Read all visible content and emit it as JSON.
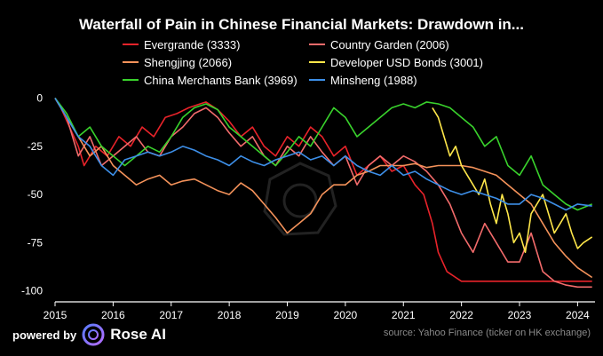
{
  "chart_data": {
    "type": "line",
    "title": "Waterfall of Pain in Chinese Financial Markets: Drawdown in...",
    "xlabel": "",
    "ylabel": "",
    "x_ticks": [
      "2015",
      "2016",
      "2017",
      "2018",
      "2019",
      "2020",
      "2021",
      "2022",
      "2023",
      "2024"
    ],
    "y_ticks": [
      "0",
      "-25",
      "-50",
      "-75",
      "-100"
    ],
    "xlim": [
      2015.0,
      2024.3
    ],
    "ylim": [
      -102,
      3
    ],
    "grid": false,
    "legend_position": "top",
    "series": [
      {
        "name": "Evergrande (3333)",
        "color": "#e8232a",
        "x": [
          2015.0,
          2015.1,
          2015.25,
          2015.4,
          2015.5,
          2015.7,
          2015.9,
          2016.1,
          2016.3,
          2016.5,
          2016.7,
          2016.9,
          2017.1,
          2017.3,
          2017.5,
          2017.6,
          2017.8,
          2018.0,
          2018.2,
          2018.4,
          2018.6,
          2018.8,
          2019.0,
          2019.2,
          2019.4,
          2019.6,
          2019.8,
          2020.0,
          2020.2,
          2020.4,
          2020.6,
          2020.8,
          2021.0,
          2021.2,
          2021.35,
          2021.5,
          2021.6,
          2021.75,
          2021.9,
          2022.0,
          2022.2,
          2022.5,
          2023.0,
          2023.5,
          2024.0,
          2024.25
        ],
        "y": [
          0,
          -5,
          -15,
          -25,
          -35,
          -25,
          -30,
          -20,
          -25,
          -15,
          -20,
          -10,
          -8,
          -5,
          -3,
          -2,
          -6,
          -12,
          -20,
          -15,
          -25,
          -30,
          -20,
          -25,
          -15,
          -20,
          -30,
          -25,
          -40,
          -35,
          -30,
          -38,
          -35,
          -45,
          -50,
          -65,
          -80,
          -90,
          -93,
          -95,
          -95,
          -95,
          -95,
          -95,
          -95,
          -95
        ]
      },
      {
        "name": "Country Garden (2006)",
        "color": "#f26b6b",
        "x": [
          2015.0,
          2015.2,
          2015.4,
          2015.6,
          2015.8,
          2016.0,
          2016.2,
          2016.4,
          2016.6,
          2016.8,
          2017.0,
          2017.2,
          2017.4,
          2017.6,
          2017.8,
          2018.0,
          2018.2,
          2018.4,
          2018.6,
          2018.8,
          2019.0,
          2019.2,
          2019.4,
          2019.6,
          2019.8,
          2020.0,
          2020.2,
          2020.4,
          2020.6,
          2020.8,
          2021.0,
          2021.2,
          2021.4,
          2021.6,
          2021.8,
          2022.0,
          2022.2,
          2022.4,
          2022.6,
          2022.8,
          2023.0,
          2023.2,
          2023.4,
          2023.6,
          2023.8,
          2024.0,
          2024.25
        ],
        "y": [
          0,
          -10,
          -30,
          -20,
          -35,
          -30,
          -25,
          -20,
          -28,
          -30,
          -20,
          -15,
          -8,
          -5,
          -10,
          -18,
          -25,
          -20,
          -30,
          -35,
          -25,
          -30,
          -20,
          -28,
          -35,
          -30,
          -45,
          -35,
          -30,
          -35,
          -30,
          -33,
          -38,
          -45,
          -55,
          -70,
          -80,
          -65,
          -75,
          -85,
          -85,
          -70,
          -90,
          -95,
          -97,
          -98,
          -98
        ]
      },
      {
        "name": "Shengjing (2066)",
        "color": "#f4925a",
        "x": [
          2015.0,
          2015.2,
          2015.4,
          2015.6,
          2015.8,
          2016.0,
          2016.2,
          2016.4,
          2016.6,
          2016.8,
          2017.0,
          2017.2,
          2017.4,
          2017.6,
          2017.8,
          2018.0,
          2018.2,
          2018.4,
          2018.6,
          2018.8,
          2019.0,
          2019.2,
          2019.4,
          2019.6,
          2019.8,
          2020.0,
          2020.2,
          2020.4,
          2020.6,
          2020.8,
          2021.0,
          2021.2,
          2021.4,
          2021.6,
          2021.8,
          2022.0,
          2022.2,
          2022.4,
          2022.6,
          2022.8,
          2023.0,
          2023.2,
          2023.4,
          2023.6,
          2023.8,
          2024.0,
          2024.25
        ],
        "y": [
          0,
          -10,
          -20,
          -30,
          -25,
          -35,
          -40,
          -45,
          -42,
          -40,
          -45,
          -43,
          -42,
          -45,
          -48,
          -50,
          -44,
          -48,
          -55,
          -62,
          -70,
          -65,
          -60,
          -50,
          -45,
          -45,
          -40,
          -38,
          -35,
          -35,
          -35,
          -34,
          -36,
          -35,
          -35,
          -35,
          -36,
          -38,
          -40,
          -45,
          -50,
          -55,
          -65,
          -75,
          -82,
          -88,
          -93
        ]
      },
      {
        "name": "Developer USD Bonds (3001)",
        "color": "#ffe74a",
        "x": [
          2021.5,
          2021.6,
          2021.7,
          2021.8,
          2021.9,
          2022.0,
          2022.1,
          2022.2,
          2022.3,
          2022.4,
          2022.5,
          2022.6,
          2022.7,
          2022.8,
          2022.9,
          2023.0,
          2023.1,
          2023.2,
          2023.3,
          2023.4,
          2023.5,
          2023.6,
          2023.7,
          2023.8,
          2023.9,
          2024.0,
          2024.1,
          2024.25
        ],
        "y": [
          -5,
          -10,
          -20,
          -30,
          -25,
          -35,
          -40,
          -45,
          -50,
          -42,
          -55,
          -65,
          -50,
          -60,
          -75,
          -70,
          -80,
          -60,
          -55,
          -50,
          -60,
          -70,
          -65,
          -60,
          -70,
          -78,
          -75,
          -72
        ]
      },
      {
        "name": "China Merchants Bank (3969)",
        "color": "#39d22c",
        "x": [
          2015.0,
          2015.2,
          2015.4,
          2015.6,
          2015.8,
          2016.0,
          2016.2,
          2016.4,
          2016.6,
          2016.8,
          2017.0,
          2017.2,
          2017.4,
          2017.6,
          2017.8,
          2018.0,
          2018.2,
          2018.4,
          2018.6,
          2018.8,
          2019.0,
          2019.2,
          2019.4,
          2019.6,
          2019.8,
          2020.0,
          2020.2,
          2020.4,
          2020.6,
          2020.8,
          2021.0,
          2021.2,
          2021.4,
          2021.6,
          2021.8,
          2022.0,
          2022.2,
          2022.4,
          2022.6,
          2022.8,
          2023.0,
          2023.2,
          2023.4,
          2023.6,
          2023.8,
          2024.0,
          2024.25
        ],
        "y": [
          0,
          -8,
          -20,
          -15,
          -25,
          -30,
          -35,
          -30,
          -25,
          -28,
          -20,
          -10,
          -5,
          -3,
          -6,
          -15,
          -20,
          -25,
          -30,
          -35,
          -28,
          -20,
          -25,
          -15,
          -5,
          -10,
          -20,
          -15,
          -10,
          -5,
          -3,
          -5,
          -2,
          -3,
          -5,
          -10,
          -15,
          -25,
          -20,
          -35,
          -40,
          -30,
          -45,
          -50,
          -55,
          -58,
          -55
        ]
      },
      {
        "name": "Minsheng (1988)",
        "color": "#3d8fe8",
        "x": [
          2015.0,
          2015.2,
          2015.4,
          2015.6,
          2015.8,
          2016.0,
          2016.2,
          2016.4,
          2016.6,
          2016.8,
          2017.0,
          2017.2,
          2017.4,
          2017.6,
          2017.8,
          2018.0,
          2018.2,
          2018.4,
          2018.6,
          2018.8,
          2019.0,
          2019.2,
          2019.4,
          2019.6,
          2019.8,
          2020.0,
          2020.2,
          2020.4,
          2020.6,
          2020.8,
          2021.0,
          2021.2,
          2021.4,
          2021.6,
          2021.8,
          2022.0,
          2022.2,
          2022.4,
          2022.6,
          2022.8,
          2023.0,
          2023.2,
          2023.4,
          2023.6,
          2023.8,
          2024.0,
          2024.25
        ],
        "y": [
          0,
          -10,
          -20,
          -25,
          -35,
          -40,
          -32,
          -30,
          -28,
          -30,
          -28,
          -25,
          -27,
          -30,
          -32,
          -35,
          -30,
          -33,
          -35,
          -32,
          -30,
          -28,
          -32,
          -30,
          -35,
          -30,
          -35,
          -38,
          -40,
          -35,
          -40,
          -38,
          -42,
          -45,
          -48,
          -50,
          -48,
          -50,
          -52,
          -55,
          -55,
          -50,
          -52,
          -55,
          -58,
          -55,
          -56
        ]
      }
    ]
  },
  "footer": {
    "powered_by": "powered by",
    "brand": "Rose AI",
    "source": "source: Yahoo Finance (ticker on HK exchange)"
  }
}
